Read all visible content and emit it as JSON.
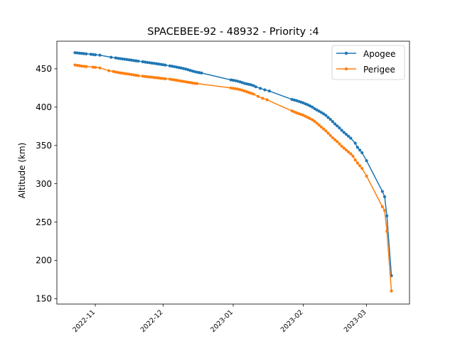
{
  "chart_data": {
    "type": "line",
    "title": "SPACEBEE-92 - 48932 - Priority :4",
    "xlabel": "",
    "ylabel": "Altitude (km)",
    "x_type": "date",
    "xlim": [
      "2022-10-15",
      "2023-03-20"
    ],
    "ylim": [
      143,
      486
    ],
    "x_ticks": [
      "2022-11-01",
      "2022-12-01",
      "2023-01-01",
      "2023-02-01",
      "2023-03-01"
    ],
    "x_tick_labels": [
      "2022-11",
      "2022-12",
      "2023-01",
      "2023-02",
      "2023-03"
    ],
    "y_ticks": [
      150,
      200,
      250,
      300,
      350,
      400,
      450
    ],
    "y_tick_labels": [
      "150",
      "200",
      "250",
      "300",
      "350",
      "400",
      "450"
    ],
    "grid": false,
    "legend_position": "top-right",
    "series": [
      {
        "name": "Apogee",
        "color": "#1f77b4",
        "points": [
          [
            "2022-10-23",
            471
          ],
          [
            "2022-10-24",
            470.7
          ],
          [
            "2022-10-25",
            470.4
          ],
          [
            "2022-10-26",
            470.1
          ],
          [
            "2022-10-27",
            469.8
          ],
          [
            "2022-10-28",
            469.5
          ],
          [
            "2022-10-30",
            469.0
          ],
          [
            "2022-10-31",
            468.6
          ],
          [
            "2022-11-01",
            468.3
          ],
          [
            "2022-11-03",
            467.8
          ],
          [
            "2022-11-08",
            465.0
          ],
          [
            "2022-11-10",
            464.2
          ],
          [
            "2022-11-11",
            463.7
          ],
          [
            "2022-11-12",
            463.3
          ],
          [
            "2022-11-13",
            462.9
          ],
          [
            "2022-11-14",
            462.5
          ],
          [
            "2022-11-15",
            462.1
          ],
          [
            "2022-11-16",
            461.7
          ],
          [
            "2022-11-17",
            461.3
          ],
          [
            "2022-11-18",
            460.8
          ],
          [
            "2022-11-19",
            460.4
          ],
          [
            "2022-11-20",
            460.0
          ],
          [
            "2022-11-22",
            459.2
          ],
          [
            "2022-11-23",
            458.8
          ],
          [
            "2022-11-24",
            458.3
          ],
          [
            "2022-11-25",
            457.9
          ],
          [
            "2022-11-26",
            457.5
          ],
          [
            "2022-11-27",
            457.1
          ],
          [
            "2022-11-28",
            456.7
          ],
          [
            "2022-11-29",
            456.2
          ],
          [
            "2022-11-30",
            455.8
          ],
          [
            "2022-12-01",
            455.3
          ],
          [
            "2022-12-02",
            454.8
          ],
          [
            "2022-12-04",
            453.8
          ],
          [
            "2022-12-05",
            453.3
          ],
          [
            "2022-12-06",
            452.8
          ],
          [
            "2022-12-07",
            452.2
          ],
          [
            "2022-12-08",
            451.6
          ],
          [
            "2022-12-09",
            451.0
          ],
          [
            "2022-12-10",
            450.3
          ],
          [
            "2022-12-11",
            449.6
          ],
          [
            "2022-12-12",
            448.8
          ],
          [
            "2022-12-13",
            447.9
          ],
          [
            "2022-12-14",
            447.0
          ],
          [
            "2022-12-15",
            446.2
          ],
          [
            "2022-12-16",
            445.6
          ],
          [
            "2022-12-17",
            445.0
          ],
          [
            "2022-12-18",
            444.5
          ],
          [
            "2022-12-31",
            435.5
          ],
          [
            "2023-01-01",
            435.0
          ],
          [
            "2023-01-02",
            434.5
          ],
          [
            "2023-01-03",
            433.8
          ],
          [
            "2023-01-04",
            433.0
          ],
          [
            "2023-01-05",
            432.0
          ],
          [
            "2023-01-06",
            431.0
          ],
          [
            "2023-01-07",
            430.3
          ],
          [
            "2023-01-08",
            429.7
          ],
          [
            "2023-01-09",
            429.0
          ],
          [
            "2023-01-10",
            428.0
          ],
          [
            "2023-01-11",
            426.5
          ],
          [
            "2023-01-13",
            424.5
          ],
          [
            "2023-01-15",
            422.5
          ],
          [
            "2023-01-17",
            421.0
          ],
          [
            "2023-01-27",
            410.0
          ],
          [
            "2023-01-28",
            409.3
          ],
          [
            "2023-01-29",
            408.5
          ],
          [
            "2023-01-30",
            407.5
          ],
          [
            "2023-01-31",
            406.5
          ],
          [
            "2023-02-01",
            405.5
          ],
          [
            "2023-02-02",
            404.2
          ],
          [
            "2023-02-03",
            403.0
          ],
          [
            "2023-02-04",
            401.5
          ],
          [
            "2023-02-05",
            400.0
          ],
          [
            "2023-02-06",
            398.0
          ],
          [
            "2023-02-07",
            396.3
          ],
          [
            "2023-02-08",
            394.7
          ],
          [
            "2023-02-09",
            393.0
          ],
          [
            "2023-02-10",
            391.2
          ],
          [
            "2023-02-11",
            389.2
          ],
          [
            "2023-02-12",
            386.5
          ],
          [
            "2023-02-13",
            384.0
          ],
          [
            "2023-02-14",
            381.0
          ],
          [
            "2023-02-15",
            378.0
          ],
          [
            "2023-02-16",
            375.5
          ],
          [
            "2023-02-17",
            372.8
          ],
          [
            "2023-02-18",
            369.8
          ],
          [
            "2023-02-19",
            367.0
          ],
          [
            "2023-02-20",
            364.5
          ],
          [
            "2023-02-21",
            362.0
          ],
          [
            "2023-02-22",
            359.5
          ],
          [
            "2023-02-24",
            353.0
          ],
          [
            "2023-02-25",
            347.5
          ],
          [
            "2023-02-26",
            344.0
          ],
          [
            "2023-02-27",
            340.5
          ],
          [
            "2023-03-01",
            330.0
          ],
          [
            "2023-03-08",
            290.0
          ],
          [
            "2023-03-09",
            283.0
          ],
          [
            "2023-03-10",
            258.0
          ],
          [
            "2023-03-12",
            180.0
          ]
        ]
      },
      {
        "name": "Perigee",
        "color": "#ff7f0e",
        "points": [
          [
            "2022-10-23",
            455
          ],
          [
            "2022-10-24",
            454.5
          ],
          [
            "2022-10-25",
            454.0
          ],
          [
            "2022-10-26",
            453.5
          ],
          [
            "2022-10-27",
            453.2
          ],
          [
            "2022-10-28",
            453.0
          ],
          [
            "2022-10-31",
            452.2
          ],
          [
            "2022-11-01",
            451.8
          ],
          [
            "2022-11-03",
            451.2
          ],
          [
            "2022-11-07",
            447.5
          ],
          [
            "2022-11-09",
            446.5
          ],
          [
            "2022-11-10",
            445.8
          ],
          [
            "2022-11-11",
            445.2
          ],
          [
            "2022-11-12",
            444.7
          ],
          [
            "2022-11-13",
            444.3
          ],
          [
            "2022-11-14",
            443.8
          ],
          [
            "2022-11-15",
            443.4
          ],
          [
            "2022-11-16",
            443.0
          ],
          [
            "2022-11-17",
            442.5
          ],
          [
            "2022-11-18",
            442.0
          ],
          [
            "2022-11-19",
            441.5
          ],
          [
            "2022-11-20",
            441.0
          ],
          [
            "2022-11-22",
            440.4
          ],
          [
            "2022-11-23",
            440.0
          ],
          [
            "2022-11-24",
            439.6
          ],
          [
            "2022-11-25",
            439.3
          ],
          [
            "2022-11-26",
            439.0
          ],
          [
            "2022-11-27",
            438.6
          ],
          [
            "2022-11-28",
            438.3
          ],
          [
            "2022-11-29",
            438.0
          ],
          [
            "2022-11-30",
            437.6
          ],
          [
            "2022-12-01",
            437.3
          ],
          [
            "2022-12-02",
            437.0
          ],
          [
            "2022-12-04",
            436.5
          ],
          [
            "2022-12-05",
            436.0
          ],
          [
            "2022-12-06",
            435.5
          ],
          [
            "2022-12-07",
            435.0
          ],
          [
            "2022-12-08",
            434.5
          ],
          [
            "2022-12-09",
            434.0
          ],
          [
            "2022-12-10",
            433.5
          ],
          [
            "2022-12-11",
            433.0
          ],
          [
            "2022-12-12",
            432.5
          ],
          [
            "2022-12-13",
            432.0
          ],
          [
            "2022-12-14",
            431.5
          ],
          [
            "2022-12-15",
            431.0
          ],
          [
            "2022-12-16",
            430.7
          ],
          [
            "2022-12-31",
            425.0
          ],
          [
            "2023-01-01",
            424.5
          ],
          [
            "2023-01-02",
            424.0
          ],
          [
            "2023-01-03",
            423.5
          ],
          [
            "2023-01-04",
            422.8
          ],
          [
            "2023-01-05",
            422.0
          ],
          [
            "2023-01-06",
            421.0
          ],
          [
            "2023-01-07",
            420.0
          ],
          [
            "2023-01-08",
            419.0
          ],
          [
            "2023-01-09",
            418.0
          ],
          [
            "2023-01-10",
            417.0
          ],
          [
            "2023-01-12",
            414.0
          ],
          [
            "2023-01-14",
            411.5
          ],
          [
            "2023-01-16",
            409.5
          ],
          [
            "2023-01-27",
            395.0
          ],
          [
            "2023-01-28",
            393.8
          ],
          [
            "2023-01-29",
            392.5
          ],
          [
            "2023-01-30",
            391.5
          ],
          [
            "2023-01-31",
            390.5
          ],
          [
            "2023-02-01",
            389.5
          ],
          [
            "2023-02-02",
            388.0
          ],
          [
            "2023-02-03",
            386.5
          ],
          [
            "2023-02-04",
            385.0
          ],
          [
            "2023-02-05",
            383.5
          ],
          [
            "2023-02-06",
            381.5
          ],
          [
            "2023-02-07",
            379.0
          ],
          [
            "2023-02-08",
            376.5
          ],
          [
            "2023-02-09",
            374.0
          ],
          [
            "2023-02-10",
            371.5
          ],
          [
            "2023-02-11",
            369.0
          ],
          [
            "2023-02-12",
            366.0
          ],
          [
            "2023-02-13",
            363.0
          ],
          [
            "2023-02-14",
            360.0
          ],
          [
            "2023-02-15",
            357.5
          ],
          [
            "2023-02-16",
            355.0
          ],
          [
            "2023-02-17",
            352.0
          ],
          [
            "2023-02-18",
            349.0
          ],
          [
            "2023-02-19",
            346.5
          ],
          [
            "2023-02-20",
            344.0
          ],
          [
            "2023-02-21",
            341.5
          ],
          [
            "2023-02-22",
            339.0
          ],
          [
            "2023-02-23",
            336.0
          ],
          [
            "2023-02-24",
            331.0
          ],
          [
            "2023-02-25",
            327.0
          ],
          [
            "2023-02-26",
            323.5
          ],
          [
            "2023-02-27",
            320.0
          ],
          [
            "2023-03-01",
            310.0
          ],
          [
            "2023-03-08",
            270.0
          ],
          [
            "2023-03-09",
            265.0
          ],
          [
            "2023-03-10",
            238.0
          ],
          [
            "2023-03-12",
            160.0
          ]
        ]
      }
    ]
  }
}
